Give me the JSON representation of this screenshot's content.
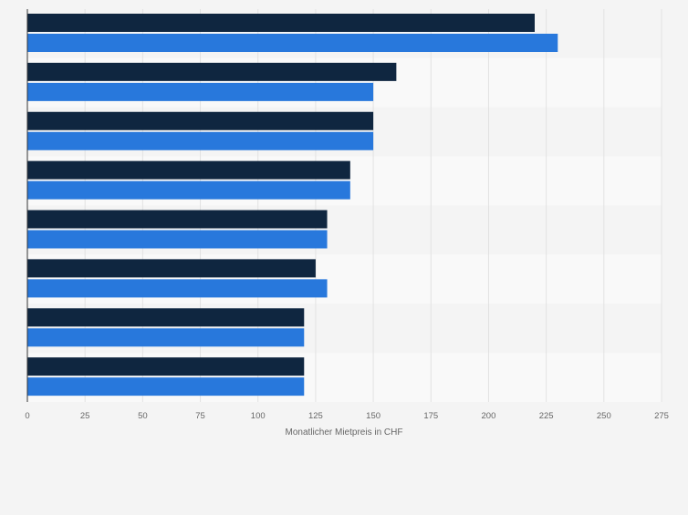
{
  "chart_data": {
    "type": "bar",
    "orientation": "horizontal",
    "categories": [
      "",
      "",
      "",
      "",
      "",
      "",
      "",
      ""
    ],
    "series": [
      {
        "values": [
          220,
          160,
          150,
          140,
          130,
          125,
          120,
          120
        ]
      },
      {
        "values": [
          230,
          150,
          150,
          140,
          130,
          130,
          120,
          120
        ]
      }
    ],
    "xlabel": "Monatlicher Mietpreis in CHF",
    "xlim": [
      0,
      275
    ],
    "xticks": [
      "0",
      "25",
      "50",
      "75",
      "100",
      "125",
      "150",
      "175",
      "200",
      "225",
      "250",
      "275"
    ],
    "grid": true,
    "legend": "none"
  },
  "colors": {
    "series_1": "#0f2640",
    "series_2": "#2878dc",
    "background": "#f4f4f4",
    "band_light": "#f9f9f9",
    "gridline": "#e2e2e2",
    "axis": "#333333",
    "tick_text": "#666666"
  }
}
